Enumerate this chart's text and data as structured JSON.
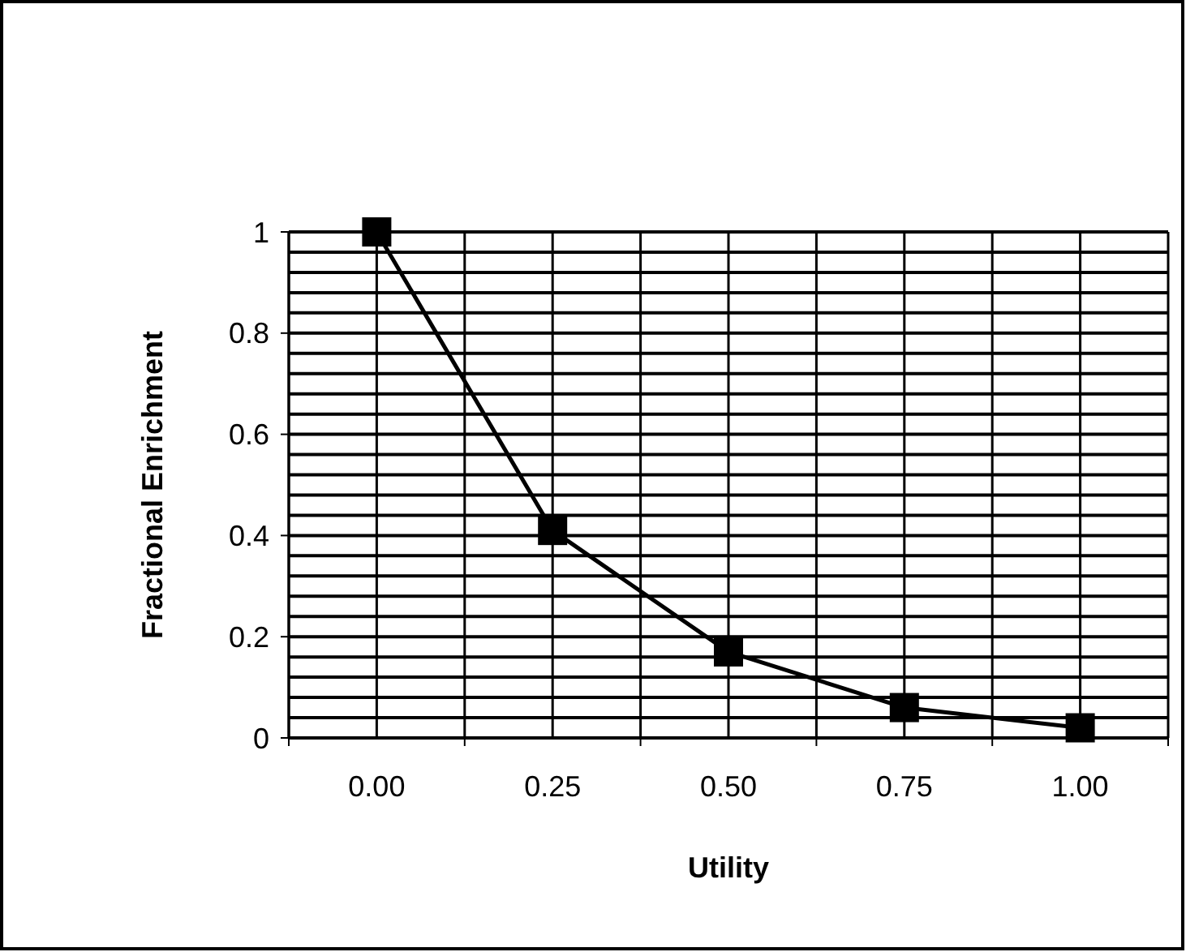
{
  "chart_data": {
    "type": "line",
    "xlabel": "Utility",
    "ylabel": "Fractional Enrichment",
    "x": [
      0,
      0.25,
      0.5,
      0.75,
      1
    ],
    "series": [
      {
        "color": "#000000",
        "values": [
          1,
          0.41,
          0.17,
          0.06,
          0.02
        ]
      }
    ],
    "xlim": [
      -0.125,
      1.125
    ],
    "xticks": [
      {
        "value": -0.125,
        "label": null
      },
      {
        "value": 0,
        "label": "0.00"
      },
      {
        "value": 0.125,
        "label": null
      },
      {
        "value": 0.25,
        "label": "0.25"
      },
      {
        "value": 0.375,
        "label": null
      },
      {
        "value": 0.5,
        "label": "0.50"
      },
      {
        "value": 0.625,
        "label": null
      },
      {
        "value": 0.75,
        "label": "0.75"
      },
      {
        "value": 0.875,
        "label": null
      },
      {
        "value": 1,
        "label": "1.00"
      },
      {
        "value": 1.125,
        "label": null
      }
    ],
    "ylim": [
      0,
      1
    ],
    "yticks": [
      0,
      {
        "value": 0.04,
        "label": null
      },
      {
        "value": 0.08,
        "label": null
      },
      {
        "value": 0.12,
        "label": null
      },
      {
        "value": 0.16,
        "label": null
      },
      0.2,
      {
        "value": 0.24,
        "label": null
      },
      {
        "value": 0.28,
        "label": null
      },
      {
        "value": 0.32,
        "label": null
      },
      {
        "value": 0.36,
        "label": null
      },
      0.4,
      {
        "value": 0.44,
        "label": null
      },
      {
        "value": 0.48,
        "label": null
      },
      {
        "value": 0.52,
        "label": null
      },
      {
        "value": 0.56,
        "label": null
      },
      0.6,
      {
        "value": 0.64,
        "label": null
      },
      {
        "value": 0.68,
        "label": null
      },
      {
        "value": 0.72,
        "label": null
      },
      {
        "value": 0.76,
        "label": null
      },
      0.8,
      {
        "value": 0.84,
        "label": null
      },
      {
        "value": 0.88,
        "label": null
      },
      {
        "value": 0.92,
        "label": null
      },
      {
        "value": 0.96,
        "label": null
      },
      1
    ],
    "grid": true,
    "marker": "square",
    "line_style": "solid"
  }
}
